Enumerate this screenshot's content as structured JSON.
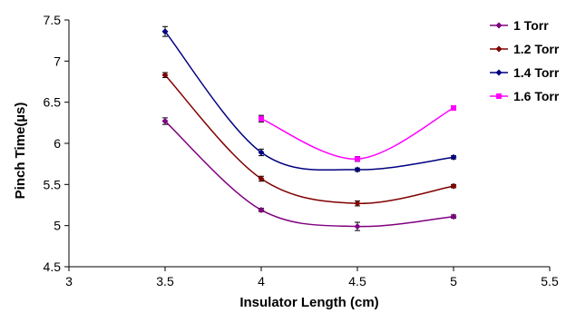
{
  "chart_data": {
    "type": "line",
    "xlabel": "Insulator Length (cm)",
    "ylabel": "Pinch Time(µs)",
    "xlim": [
      3,
      5.5
    ],
    "ylim": [
      4.5,
      7.5
    ],
    "x_ticks": [
      3,
      3.5,
      4,
      4.5,
      5,
      5.5
    ],
    "y_ticks": [
      4.5,
      5,
      5.5,
      6,
      6.5,
      7,
      7.5
    ],
    "x_tick_labels": [
      "3",
      "3.5",
      "4",
      "4.5",
      "5",
      "5.5"
    ],
    "y_tick_labels": [
      "4.5",
      "5",
      "5.5",
      "6",
      "6.5",
      "7",
      "7.5"
    ],
    "grid": false,
    "legend_position": "top-right",
    "series": [
      {
        "name": "1 Torr",
        "color": "#800080",
        "x": [
          3.5,
          4,
          4.5,
          5
        ],
        "y": [
          6.27,
          5.19,
          4.99,
          5.11
        ],
        "err": [
          0.04,
          0.02,
          0.05,
          0.02
        ]
      },
      {
        "name": "1.2 Torr",
        "color": "#800000",
        "x": [
          3.5,
          4,
          4.5,
          5
        ],
        "y": [
          6.83,
          5.57,
          5.27,
          5.48
        ],
        "err": [
          0.03,
          0.03,
          0.03,
          0.02
        ]
      },
      {
        "name": "1.4 Torr",
        "color": "#000080",
        "x": [
          3.5,
          4,
          4.5,
          5
        ],
        "y": [
          7.36,
          5.89,
          5.68,
          5.83
        ],
        "err": [
          0.06,
          0.04,
          0.02,
          0.02
        ]
      },
      {
        "name": "1.6 Torr",
        "color": "#ff00ff",
        "x": [
          4,
          4.5,
          5
        ],
        "y": [
          6.3,
          5.81,
          6.43
        ],
        "err": [
          0.04,
          0.03,
          0.02
        ]
      }
    ]
  }
}
